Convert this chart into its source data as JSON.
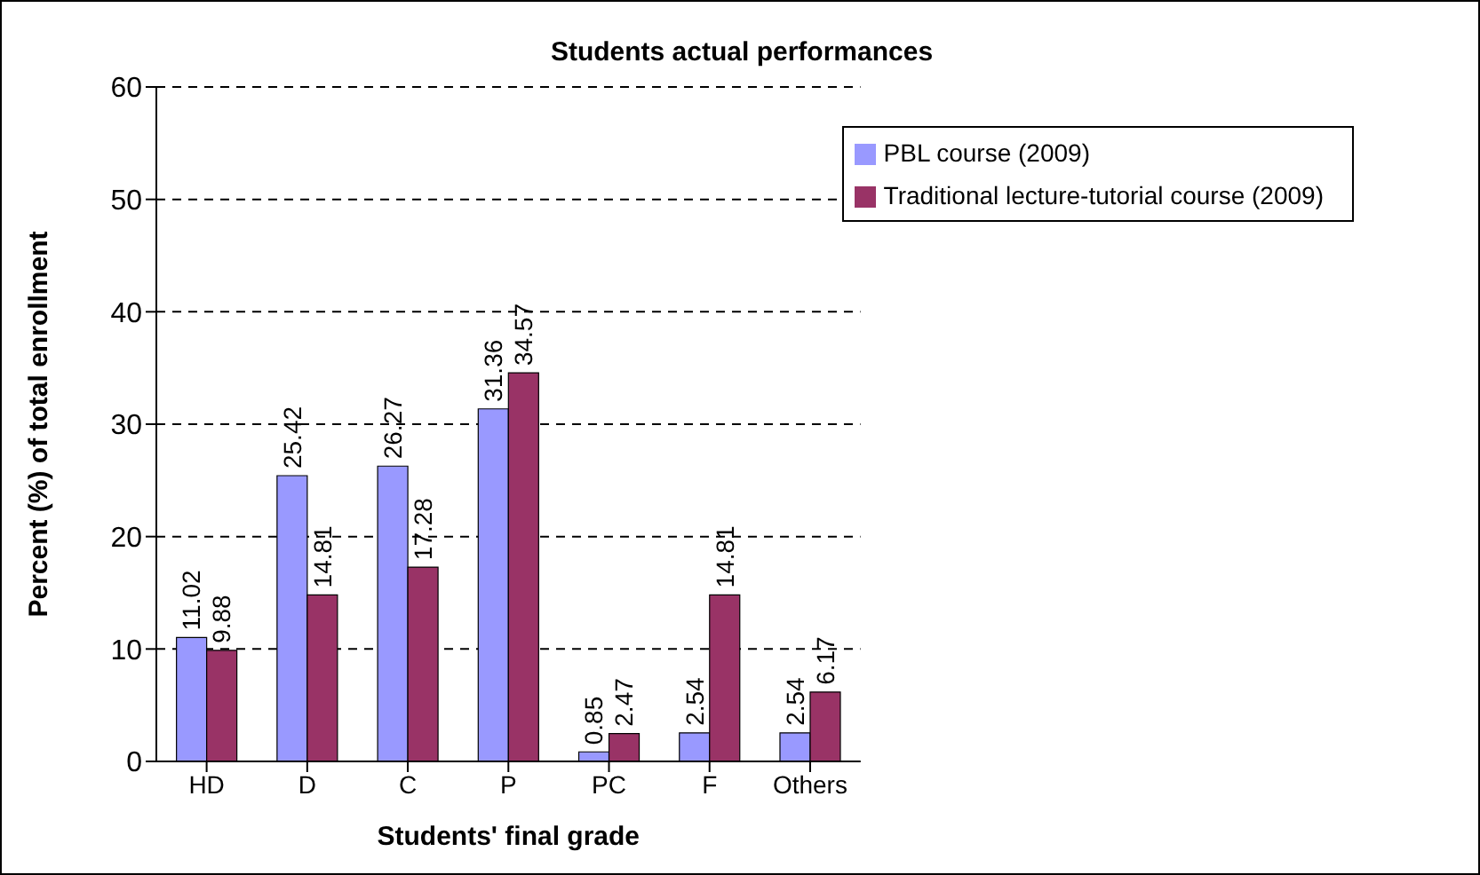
{
  "chart_data": {
    "type": "bar",
    "title": "Students actual performances",
    "xlabel": "Students' final grade",
    "ylabel": "Percent (%) of total enrollment",
    "categories": [
      "HD",
      "D",
      "C",
      "P",
      "PC",
      "F",
      "Others"
    ],
    "series": [
      {
        "name": "PBL course (2009)",
        "color": "#9999ff",
        "values": [
          11.02,
          25.42,
          26.27,
          31.36,
          0.85,
          2.54,
          2.54
        ]
      },
      {
        "name": "Traditional lecture-tutorial course (2009)",
        "color": "#993366",
        "values": [
          9.88,
          14.81,
          17.28,
          34.57,
          2.47,
          14.81,
          6.17
        ]
      }
    ],
    "ylim": [
      0,
      60
    ],
    "yticks": [
      0,
      10,
      20,
      30,
      40,
      50,
      60
    ],
    "grid": "y",
    "legend": "top right",
    "data_labels": true
  }
}
